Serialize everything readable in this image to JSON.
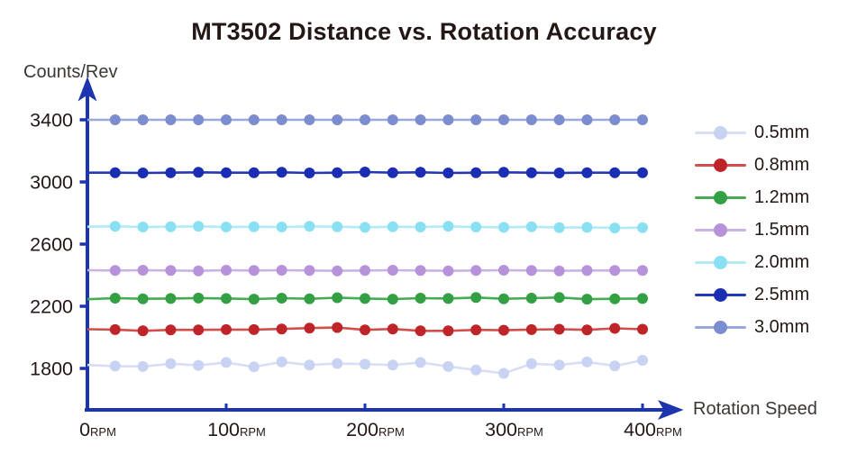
{
  "title": "MT3502 Distance vs. Rotation Accuracy",
  "background": "#ffffff",
  "text_color": "#231815",
  "axis_color": "#1c34ae",
  "chart_data": {
    "type": "line",
    "title": "MT3502 Distance vs. Rotation Accuracy",
    "xlabel": "Rotation Speed",
    "ylabel": "Counts/Rev",
    "x_unit": "RPM",
    "x": [
      0,
      20,
      40,
      60,
      80,
      100,
      120,
      140,
      160,
      180,
      200,
      220,
      240,
      260,
      280,
      300,
      320,
      340,
      360,
      380,
      400
    ],
    "x_ticks": [
      0,
      100,
      200,
      300,
      400
    ],
    "y_ticks": [
      1800,
      2200,
      2600,
      3000,
      3400
    ],
    "xlim": [
      0,
      400
    ],
    "ylim": [
      1530,
      3620
    ],
    "grid": false,
    "legend_position": "right",
    "marker": "circle",
    "series": [
      {
        "name": "0.5mm",
        "color": "#c8d2f2",
        "line_color": "#d7def6",
        "values": [
          1822,
          1815,
          1812,
          1830,
          1820,
          1838,
          1810,
          1842,
          1822,
          1832,
          1828,
          1822,
          1838,
          1812,
          1790,
          1768,
          1830,
          1822,
          1842,
          1816,
          1852
        ]
      },
      {
        "name": "0.8mm",
        "color": "#bf2429",
        "line_color": "#d04f4c",
        "values": [
          2052,
          2050,
          2042,
          2048,
          2048,
          2050,
          2050,
          2054,
          2060,
          2063,
          2048,
          2054,
          2042,
          2042,
          2048,
          2046,
          2050,
          2052,
          2048,
          2058,
          2052
        ]
      },
      {
        "name": "1.2mm",
        "color": "#33a143",
        "line_color": "#46ac54",
        "values": [
          2245,
          2252,
          2248,
          2250,
          2253,
          2250,
          2246,
          2252,
          2248,
          2255,
          2250,
          2246,
          2252,
          2250,
          2256,
          2248,
          2252,
          2256,
          2246,
          2248,
          2250
        ]
      },
      {
        "name": "1.5mm",
        "color": "#b592da",
        "line_color": "#c9b2e6",
        "values": [
          2432,
          2430,
          2432,
          2430,
          2428,
          2432,
          2430,
          2432,
          2430,
          2428,
          2430,
          2432,
          2430,
          2428,
          2430,
          2432,
          2430,
          2428,
          2430,
          2430,
          2430
        ]
      },
      {
        "name": "2.0mm",
        "color": "#89e0f3",
        "line_color": "#b2eaf7",
        "values": [
          2712,
          2715,
          2710,
          2712,
          2714,
          2710,
          2712,
          2710,
          2714,
          2712,
          2708,
          2712,
          2710,
          2714,
          2710,
          2708,
          2712,
          2706,
          2708,
          2704,
          2706
        ]
      },
      {
        "name": "2.5mm",
        "color": "#1a2db3",
        "line_color": "#2438b6",
        "values": [
          3060,
          3060,
          3058,
          3060,
          3062,
          3060,
          3060,
          3062,
          3058,
          3060,
          3064,
          3060,
          3062,
          3058,
          3060,
          3062,
          3060,
          3058,
          3060,
          3060,
          3060
        ]
      },
      {
        "name": "3.0mm",
        "color": "#7b8ccf",
        "line_color": "#9aa8de",
        "values": [
          3400,
          3400,
          3400,
          3400,
          3400,
          3400,
          3400,
          3400,
          3400,
          3400,
          3400,
          3400,
          3400,
          3400,
          3400,
          3400,
          3400,
          3400,
          3400,
          3400,
          3400
        ]
      }
    ]
  }
}
